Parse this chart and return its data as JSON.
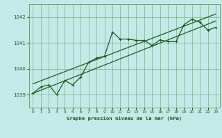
{
  "title": "Graphe pression niveau de la mer (hPa)",
  "bg_color": "#c5e8e8",
  "grid_color": "#66aa66",
  "line_color": "#1a5c1a",
  "xlim": [
    -0.5,
    23.5
  ],
  "ylim": [
    1038.5,
    1042.5
  ],
  "yticks": [
    1039,
    1040,
    1041,
    1042
  ],
  "xticks": [
    0,
    1,
    2,
    3,
    4,
    5,
    6,
    7,
    8,
    9,
    10,
    11,
    12,
    13,
    14,
    15,
    16,
    17,
    18,
    19,
    20,
    21,
    22,
    23
  ],
  "pressure_data": [
    [
      0,
      1039.05
    ],
    [
      1,
      1039.3
    ],
    [
      2,
      1039.38
    ],
    [
      3,
      1039.0
    ],
    [
      4,
      1039.55
    ],
    [
      5,
      1039.38
    ],
    [
      6,
      1039.68
    ],
    [
      7,
      1040.25
    ],
    [
      8,
      1040.42
    ],
    [
      9,
      1040.48
    ],
    [
      10,
      1041.42
    ],
    [
      11,
      1041.15
    ],
    [
      12,
      1041.15
    ],
    [
      13,
      1041.1
    ],
    [
      14,
      1041.1
    ],
    [
      15,
      1040.9
    ],
    [
      16,
      1041.12
    ],
    [
      17,
      1041.05
    ],
    [
      18,
      1041.05
    ],
    [
      19,
      1041.7
    ],
    [
      20,
      1041.92
    ],
    [
      21,
      1041.8
    ],
    [
      22,
      1041.5
    ],
    [
      23,
      1041.6
    ]
  ],
  "trend_line1": [
    [
      0,
      1039.05
    ],
    [
      23,
      1041.85
    ]
  ],
  "trend_line2": [
    [
      0,
      1039.42
    ],
    [
      23,
      1042.12
    ]
  ]
}
